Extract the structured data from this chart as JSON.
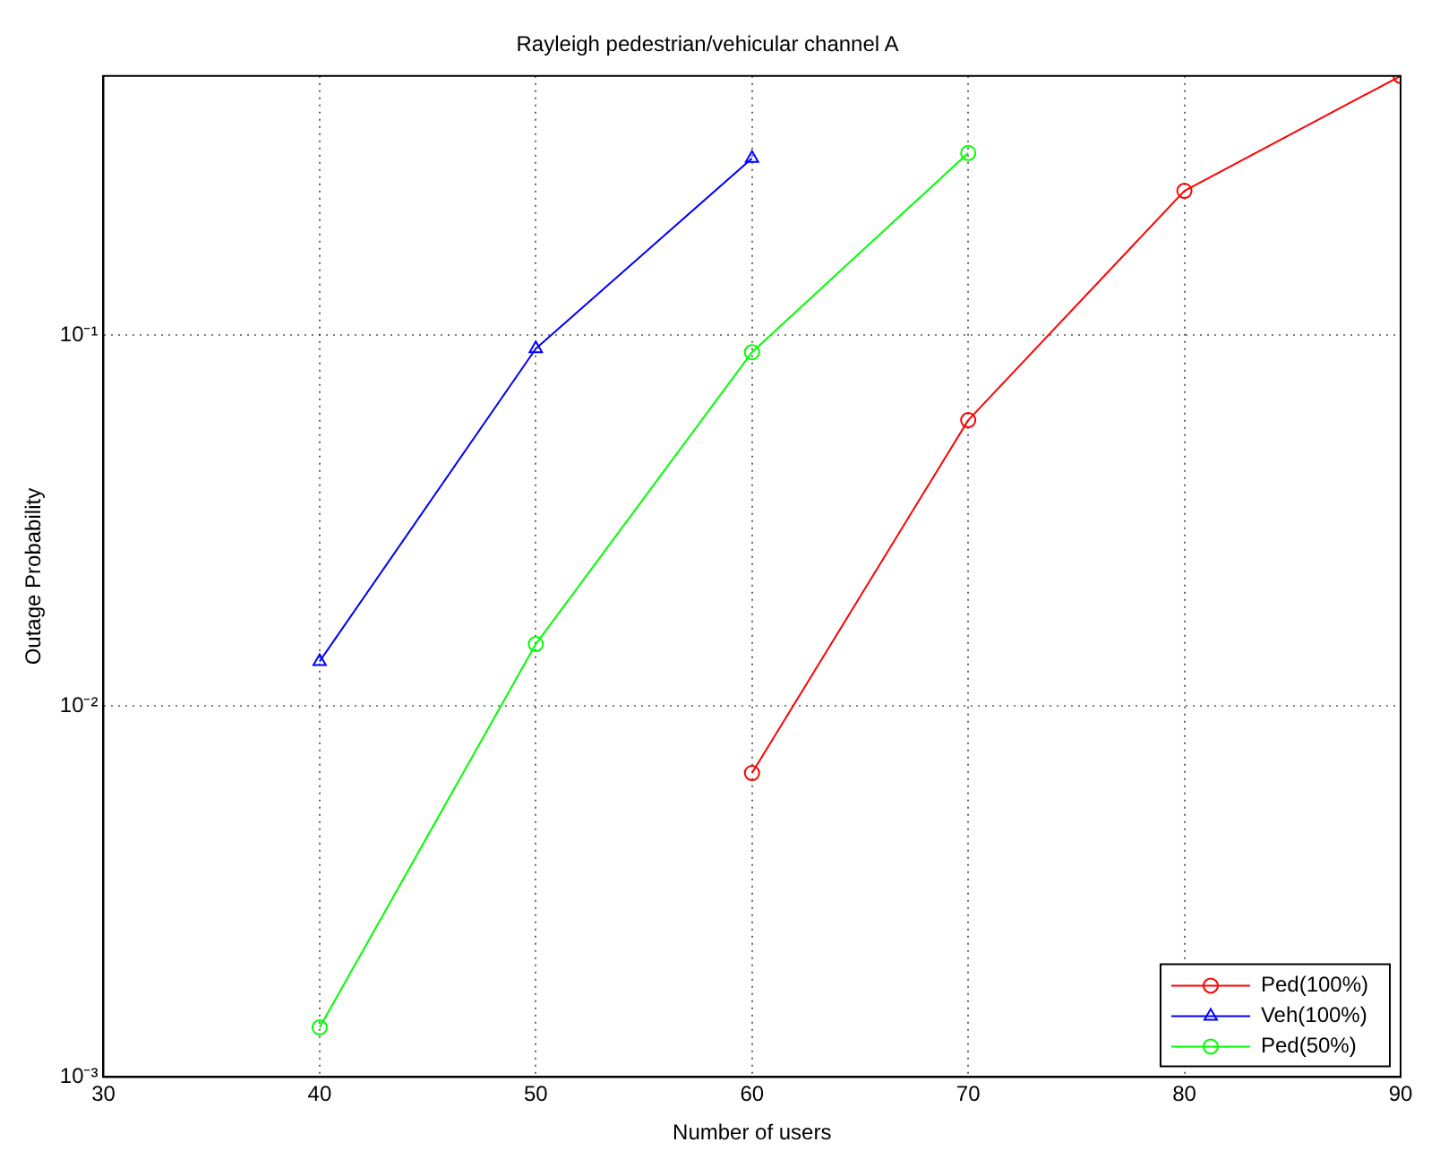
{
  "chart_data": {
    "type": "line",
    "title": "Rayleigh pedestrian/vehicular channel A",
    "xlabel": "Number of users",
    "ylabel": "Outage Probability",
    "x": [
      40,
      50,
      60,
      70,
      80,
      90
    ],
    "series": [
      {
        "name": "Ped(100%)",
        "color": "#ff0000",
        "marker": "circle",
        "values": [
          null,
          null,
          0.0066,
          0.059,
          0.245,
          0.5
        ]
      },
      {
        "name": "Veh(100%)",
        "color": "#0000ff",
        "marker": "triangle",
        "values": [
          0.0132,
          0.092,
          0.3,
          null,
          null,
          null
        ]
      },
      {
        "name": "Ped(50%)",
        "color": "#00ff00",
        "marker": "circle",
        "values": [
          0.00136,
          0.0147,
          0.09,
          0.31,
          null,
          null
        ]
      }
    ],
    "log": "y",
    "xlim": [
      30,
      90
    ],
    "xticks": [
      30,
      40,
      50,
      60,
      70,
      80,
      90
    ],
    "ylim": [
      0.001,
      0.5
    ],
    "yticks": [
      {
        "value": 0.001,
        "label": "10⁻³"
      },
      {
        "value": 0.01,
        "label": "10⁻²"
      },
      {
        "value": 0.1,
        "label": "10⁻¹"
      }
    ],
    "grid": true,
    "legend": "bottom right",
    "line_style": "solid"
  }
}
